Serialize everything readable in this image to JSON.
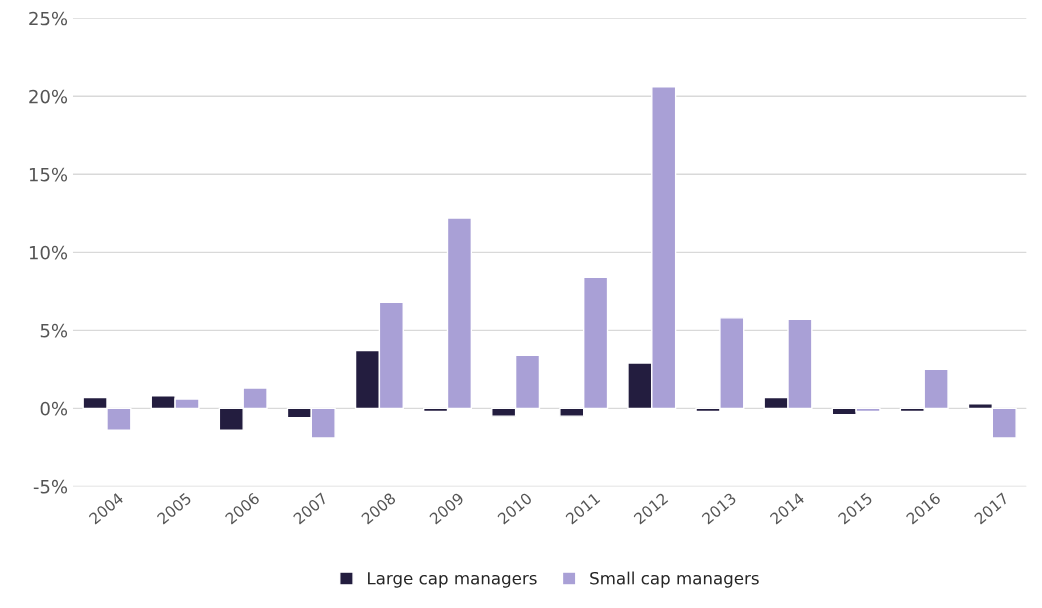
{
  "chart_data": {
    "type": "bar",
    "categories": [
      "2004",
      "2005",
      "2006",
      "2007",
      "2008",
      "2009",
      "2010",
      "2011",
      "2012",
      "2013",
      "2014",
      "2015",
      "2016",
      "2017"
    ],
    "series": [
      {
        "name": "Large cap managers",
        "color": "#231d3f",
        "values": [
          0.7,
          0.8,
          -1.4,
          -0.6,
          3.7,
          -0.2,
          -0.5,
          -0.5,
          2.9,
          -0.2,
          0.7,
          -0.4,
          -0.2,
          0.3
        ]
      },
      {
        "name": "Small cap managers",
        "color": "#a9a0d6",
        "values": [
          -1.4,
          0.6,
          1.3,
          -1.9,
          6.8,
          12.2,
          3.4,
          8.4,
          20.6,
          5.8,
          5.7,
          -0.2,
          2.5,
          -1.9
        ]
      }
    ],
    "ylim": [
      -5,
      25
    ],
    "yticks": [
      {
        "value": -5,
        "label": "-5%"
      },
      {
        "value": 0,
        "label": "0%"
      },
      {
        "value": 5,
        "label": "5%"
      },
      {
        "value": 10,
        "label": "10%"
      },
      {
        "value": 15,
        "label": "15%"
      },
      {
        "value": 20,
        "label": "20%"
      },
      {
        "value": 25,
        "label": "25%"
      }
    ],
    "grid": "y",
    "legend": "bottom"
  }
}
